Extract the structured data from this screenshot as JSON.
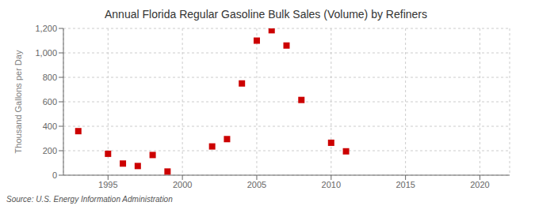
{
  "chart_data": {
    "type": "scatter",
    "title": "Annual Florida Regular Gasoline Bulk Sales (Volume) by Refiners",
    "y_label": "Thousand Gallons per Day",
    "annotations": [
      "Source: U.S. Energy Information Administration"
    ],
    "x": [
      1993,
      1995,
      1996,
      1997,
      1998,
      1999,
      2002,
      2003,
      2004,
      2005,
      2006,
      2007,
      2008,
      2010,
      2011
    ],
    "values": [
      360,
      175,
      95,
      75,
      165,
      30,
      235,
      295,
      750,
      1100,
      1185,
      1060,
      615,
      265,
      195
    ],
    "color": "#cc0000",
    "marker": "square",
    "xlim": [
      1992,
      2022
    ],
    "xticks": [
      1995,
      2000,
      2005,
      2010,
      2015,
      2020
    ],
    "ylim": [
      0,
      1200
    ],
    "yticks": [
      0,
      200,
      400,
      600,
      {
        "value": 800,
        "label": "800"
      },
      {
        "value": 1000,
        "label": "1,000"
      },
      {
        "value": 1200,
        "label": "1,200"
      }
    ],
    "grid": true
  }
}
